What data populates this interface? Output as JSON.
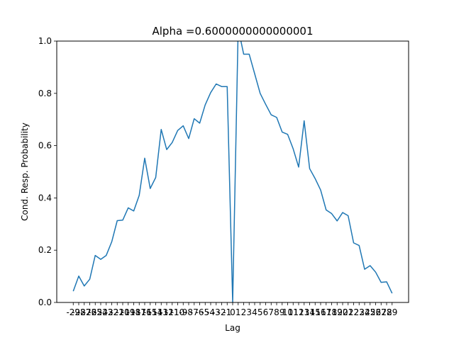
{
  "chart_data": {
    "type": "line",
    "title": "Alpha =0.6000000000000001",
    "xlabel": "Lag",
    "ylabel": "Cond. Resp. Probability",
    "xlim": [
      -32,
      32
    ],
    "ylim": [
      0,
      1
    ],
    "grid": false,
    "legend": "none",
    "xticks": [
      -29,
      -28,
      -27,
      -26,
      -25,
      -24,
      -23,
      -22,
      -21,
      -20,
      -19,
      -18,
      -17,
      -16,
      -15,
      -14,
      -13,
      -12,
      -11,
      -10,
      -9,
      -8,
      -7,
      -6,
      -5,
      -4,
      -3,
      -2,
      -1,
      0,
      1,
      2,
      3,
      4,
      5,
      6,
      7,
      8,
      9,
      10,
      11,
      12,
      13,
      14,
      15,
      16,
      17,
      18,
      19,
      20,
      21,
      22,
      23,
      24,
      25,
      26,
      27,
      28,
      29
    ],
    "yticks": [
      0.0,
      0.2,
      0.4,
      0.6,
      0.8,
      1.0
    ],
    "ytick_labels": [
      "0.0",
      "0.2",
      "0.4",
      "0.6",
      "0.8",
      "1.0"
    ],
    "series": [
      {
        "color": "#1f77b4",
        "x": [
          -29,
          -28,
          -27,
          -26,
          -25,
          -24,
          -23,
          -22,
          -21,
          -20,
          -19,
          -18,
          -17,
          -16,
          -15,
          -14,
          -13,
          -12,
          -11,
          -10,
          -9,
          -8,
          -7,
          -6,
          -5,
          -4,
          -3,
          -2,
          -1,
          0,
          1,
          2,
          3,
          4,
          5,
          6,
          7,
          8,
          9,
          10,
          11,
          12,
          13,
          14,
          15,
          16,
          17,
          18,
          19,
          20,
          21,
          22,
          23,
          24,
          25,
          26,
          27,
          28,
          29
        ],
        "y": [
          0.043,
          0.101,
          0.063,
          0.089,
          0.18,
          0.165,
          0.18,
          0.232,
          0.313,
          0.315,
          0.362,
          0.35,
          0.41,
          0.552,
          0.436,
          0.478,
          0.662,
          0.585,
          0.612,
          0.658,
          0.676,
          0.627,
          0.703,
          0.686,
          0.756,
          0.803,
          0.836,
          0.826,
          0.826,
          0.0,
          1.05,
          0.95,
          0.95,
          0.875,
          0.8,
          0.758,
          0.718,
          0.708,
          0.652,
          0.643,
          0.588,
          0.518,
          0.695,
          0.512,
          0.474,
          0.43,
          0.354,
          0.34,
          0.312,
          0.344,
          0.332,
          0.228,
          0.218,
          0.127,
          0.141,
          0.116,
          0.077,
          0.079,
          0.035
        ]
      }
    ]
  }
}
